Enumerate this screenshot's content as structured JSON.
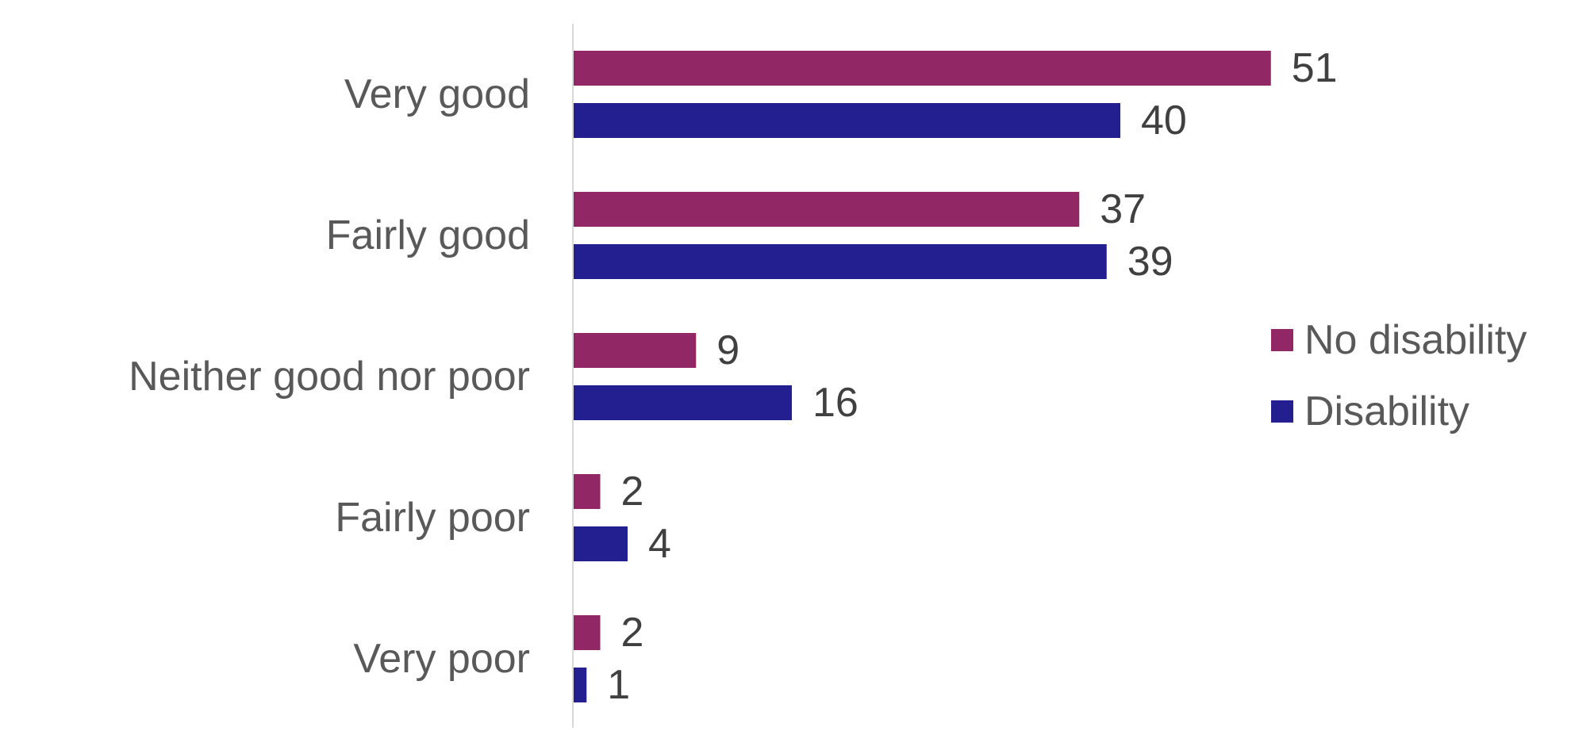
{
  "chart_data": {
    "type": "bar",
    "orientation": "horizontal",
    "categories": [
      "Very good",
      "Fairly good",
      "Neither good nor poor",
      "Fairly poor",
      "Very poor"
    ],
    "series": [
      {
        "name": "No disability",
        "color": "#912765",
        "values": [
          51,
          37,
          9,
          2,
          2
        ]
      },
      {
        "name": "Disability",
        "color": "#231F91",
        "values": [
          40,
          39,
          16,
          4,
          1
        ]
      }
    ],
    "xlim": [
      0,
      100
    ],
    "data_labels": true,
    "grid": false,
    "axis_color": "#d9d9d9",
    "legend": {
      "position": "right"
    }
  }
}
